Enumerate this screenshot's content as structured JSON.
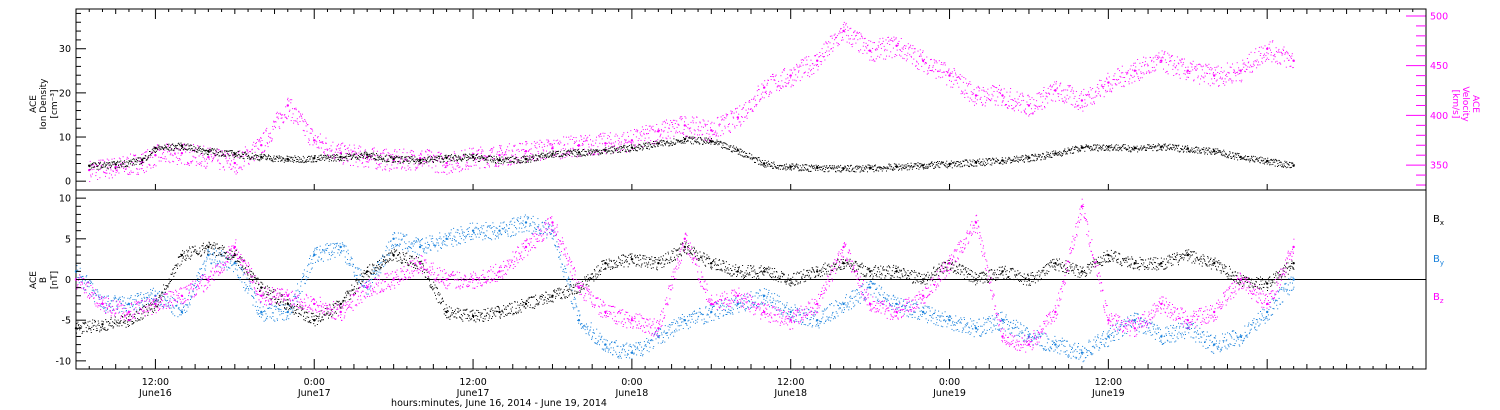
{
  "chart_data": [
    {
      "type": "scatter",
      "ylabel_left": [
        "ACE",
        "Ion Density",
        "[cm⁻³]"
      ],
      "ylabel_right": [
        "ACE",
        "Velocity",
        "[km/s]"
      ],
      "ylim_left": [
        -2,
        39
      ],
      "ylim_right": [
        325,
        507
      ],
      "yticks_left": [
        0,
        10,
        20,
        30
      ],
      "yticks_right": [
        350,
        400,
        450,
        500
      ],
      "colors": {
        "density": "#000000",
        "velocity": "#ff00ff"
      },
      "series": [
        {
          "role": "density",
          "axis": "left",
          "x": [
            7,
            9,
            11,
            12,
            14,
            16,
            18,
            20,
            22,
            24,
            26,
            28,
            30,
            32,
            34,
            36,
            38,
            40,
            42,
            44,
            46,
            48,
            50,
            52,
            54,
            56,
            58,
            60,
            62,
            64,
            66,
            68,
            70,
            72,
            74,
            76,
            78,
            80,
            82,
            84,
            86,
            88,
            90,
            92,
            94,
            96,
            98
          ],
          "y": [
            3.5,
            3.8,
            4.8,
            7.5,
            8,
            6.8,
            6.2,
            5.5,
            5,
            5.2,
            5.5,
            6,
            5,
            4.8,
            5.3,
            5.5,
            4.8,
            5,
            6.2,
            6.5,
            7,
            7.6,
            8.5,
            9.5,
            9,
            7,
            4,
            3.3,
            3,
            2.9,
            3,
            3.3,
            3.6,
            3.9,
            4.3,
            4.7,
            5.3,
            6.3,
            7.6,
            7.8,
            7.5,
            7.8,
            7.4,
            6.8,
            5.5,
            4.6,
            3.5
          ]
        },
        {
          "role": "velocity",
          "axis": "right",
          "x": [
            7,
            9,
            11,
            12,
            14,
            16,
            18,
            20,
            22,
            24,
            26,
            28,
            30,
            32,
            34,
            36,
            38,
            40,
            42,
            44,
            46,
            48,
            50,
            52,
            54,
            56,
            58,
            60,
            62,
            64,
            66,
            68,
            70,
            72,
            74,
            76,
            78,
            80,
            82,
            84,
            86,
            88,
            90,
            92,
            94,
            96,
            98
          ],
          "y": [
            345,
            348,
            353,
            360,
            362,
            358,
            352,
            370,
            410,
            375,
            362,
            358,
            355,
            357,
            352,
            358,
            360,
            364,
            367,
            370,
            372,
            375,
            384,
            390,
            385,
            398,
            428,
            440,
            455,
            485,
            465,
            470,
            455,
            440,
            420,
            420,
            410,
            425,
            415,
            433,
            445,
            455,
            445,
            440,
            445,
            467,
            455
          ]
        }
      ]
    },
    {
      "type": "scatter",
      "ylabel": [
        "ACE",
        "B",
        "[nT]"
      ],
      "ylim": [
        -11,
        11
      ],
      "yticks": [
        -10,
        -5,
        0,
        5,
        10
      ],
      "zero_line": true,
      "xlim": [
        6,
        108
      ],
      "xticks": [
        {
          "hour": 12,
          "label": "12:00",
          "day": "June16"
        },
        {
          "hour": 24,
          "label": "0:00",
          "day": "June17"
        },
        {
          "hour": 36,
          "label": "12:00",
          "day": "June17"
        },
        {
          "hour": 48,
          "label": "0:00",
          "day": "June18"
        },
        {
          "hour": 60,
          "label": "12:00",
          "day": "June18"
        },
        {
          "hour": 72,
          "label": "0:00",
          "day": "June19"
        },
        {
          "hour": 84,
          "label": "12:00",
          "day": "June19"
        }
      ],
      "xlabel": "hours:minutes, June 16, 2014 - June 19, 2014",
      "legend": [
        {
          "label": "B",
          "sub": "x",
          "color": "#000000"
        },
        {
          "label": "B",
          "sub": "y",
          "color": "#1a82dc"
        },
        {
          "label": "B",
          "sub": "z",
          "color": "#ff00ff"
        }
      ],
      "legend_position": "right",
      "series": [
        {
          "role": "Bx",
          "x": [
            6,
            8,
            10,
            12,
            14,
            16,
            18,
            20,
            22,
            24,
            26,
            28,
            30,
            32,
            34,
            36,
            38,
            40,
            42,
            44,
            46,
            48,
            50,
            52,
            54,
            56,
            58,
            60,
            62,
            64,
            66,
            68,
            70,
            72,
            74,
            76,
            78,
            80,
            82,
            84,
            86,
            88,
            90,
            92,
            94,
            96,
            98
          ],
          "y": [
            -6,
            -5.5,
            -5,
            -3,
            3,
            4,
            3,
            -1,
            -3,
            -5,
            -3,
            1,
            3,
            2,
            -4,
            -4.5,
            -4,
            -3,
            -2,
            -1,
            2,
            2.5,
            2,
            4,
            2,
            1,
            1,
            0,
            1,
            2,
            1,
            1,
            0,
            2,
            0,
            1,
            0,
            2,
            1,
            3,
            2,
            2,
            3,
            2,
            0,
            -0.5,
            2
          ]
        },
        {
          "role": "By",
          "x": [
            6,
            8,
            10,
            12,
            14,
            16,
            18,
            20,
            22,
            24,
            26,
            28,
            30,
            32,
            34,
            36,
            38,
            40,
            42,
            44,
            46,
            48,
            50,
            52,
            54,
            56,
            58,
            60,
            62,
            64,
            66,
            68,
            70,
            72,
            74,
            76,
            78,
            80,
            82,
            84,
            86,
            88,
            90,
            92,
            94,
            96,
            98
          ],
          "y": [
            1,
            -3,
            -3,
            -2,
            -4,
            3,
            2,
            -4,
            -4,
            3,
            4,
            -1,
            5,
            4,
            5,
            6,
            6,
            7,
            6,
            -5,
            -8,
            -9,
            -7,
            -5,
            -4,
            -3,
            -2,
            -4,
            -5,
            -3,
            -1,
            -3,
            -4,
            -5,
            -6,
            -5,
            -7,
            -8,
            -9,
            -7,
            -5,
            -7,
            -6,
            -8,
            -7,
            -4,
            0
          ]
        },
        {
          "role": "Bz",
          "x": [
            6,
            8,
            10,
            12,
            14,
            16,
            18,
            20,
            22,
            24,
            26,
            28,
            30,
            32,
            34,
            36,
            38,
            40,
            42,
            44,
            46,
            48,
            50,
            52,
            54,
            56,
            58,
            60,
            62,
            64,
            66,
            68,
            70,
            72,
            74,
            76,
            78,
            80,
            82,
            84,
            86,
            88,
            90,
            92,
            94,
            96,
            98
          ],
          "y": [
            0,
            -3,
            -4,
            -3,
            -2,
            0,
            4,
            -2,
            -2,
            -3,
            -4,
            -1,
            0,
            2,
            0,
            0,
            1,
            4,
            7,
            -1,
            -4,
            -5,
            -6,
            5,
            -3,
            -2,
            -4,
            -5,
            -3,
            4,
            -3,
            -4,
            -2,
            2,
            7,
            -7,
            -8,
            -4,
            9,
            -5,
            -6,
            -3,
            -5,
            -4,
            0,
            -3,
            4
          ]
        }
      ]
    }
  ]
}
